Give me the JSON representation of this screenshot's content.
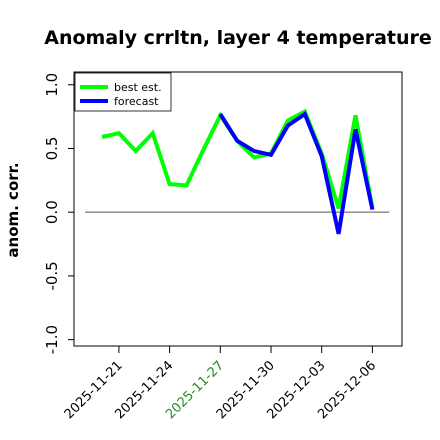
{
  "chart_data": {
    "type": "line",
    "title": "Anomaly crrltn, layer 4 temperature",
    "ylabel": "anom. corr.",
    "xlabel": "",
    "ylim": [
      -1.05,
      1.1
    ],
    "yticks": [
      -1.0,
      -0.5,
      0.0,
      0.5,
      1.0
    ],
    "ytick_labels": [
      "-1.0",
      "-0.5",
      "0.0",
      "0.5",
      "1.0"
    ],
    "x": [
      "2025-11-20",
      "2025-11-21",
      "2025-11-22",
      "2025-11-23",
      "2025-11-24",
      "2025-11-25",
      "2025-11-26",
      "2025-11-27",
      "2025-11-28",
      "2025-11-29",
      "2025-11-30",
      "2025-12-01",
      "2025-12-02",
      "2025-12-03",
      "2025-12-04",
      "2025-12-05",
      "2025-12-06"
    ],
    "xtick_labels": [
      "2025-11-21",
      "2025-11-24",
      "2025-11-27",
      "2025-11-30",
      "2025-12-03",
      "2025-12-06"
    ],
    "xtick_colors": [
      "#000000",
      "#000000",
      "#228b22",
      "#000000",
      "#000000",
      "#000000"
    ],
    "hline": 0.0,
    "grid": false,
    "legend_position": "top-left",
    "series": [
      {
        "name": "best est.",
        "color": "#00ff00",
        "values": [
          0.59,
          0.62,
          0.48,
          0.62,
          0.22,
          0.21,
          0.49,
          0.76,
          0.56,
          0.43,
          0.46,
          0.72,
          0.79,
          0.46,
          0.03,
          0.76,
          0.03
        ]
      },
      {
        "name": "forecast",
        "color": "#0000ff",
        "values": [
          null,
          null,
          null,
          null,
          null,
          null,
          null,
          0.77,
          0.56,
          0.48,
          0.45,
          0.68,
          0.77,
          0.44,
          -0.17,
          0.65,
          0.02
        ]
      }
    ]
  }
}
